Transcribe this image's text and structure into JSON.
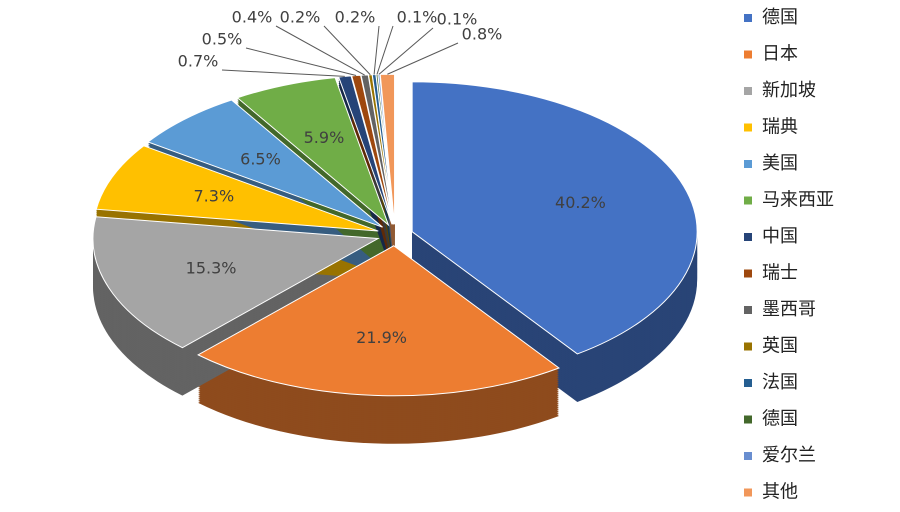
{
  "chart_data": {
    "type": "pie3d",
    "categories": [
      "德国",
      "日本",
      "新加坡",
      "瑞典",
      "美国",
      "马来西亚",
      "中国",
      "瑞士",
      "墨西哥",
      "英国",
      "法国",
      "德国",
      "爱尔兰",
      "其他"
    ],
    "values": [
      40.2,
      21.9,
      15.3,
      7.3,
      6.5,
      5.9,
      0.7,
      0.5,
      0.4,
      0.2,
      0.2,
      0.1,
      0.1,
      0.8
    ],
    "value_labels": [
      "40.2%",
      "21.9%",
      "15.3%",
      "7.3%",
      "6.5%",
      "5.9%",
      "0.7%",
      "0.5%",
      "0.4%",
      "0.2%",
      "0.2%",
      "0.1%",
      "0.1%",
      "0.8%"
    ],
    "colors": [
      "#4472c4",
      "#ed7d31",
      "#a5a5a5",
      "#ffc000",
      "#5b9bd5",
      "#70ad47",
      "#264478",
      "#9e480e",
      "#636363",
      "#997300",
      "#255e91",
      "#43682b",
      "#698ed0",
      "#f1975a"
    ],
    "legend": "right"
  }
}
